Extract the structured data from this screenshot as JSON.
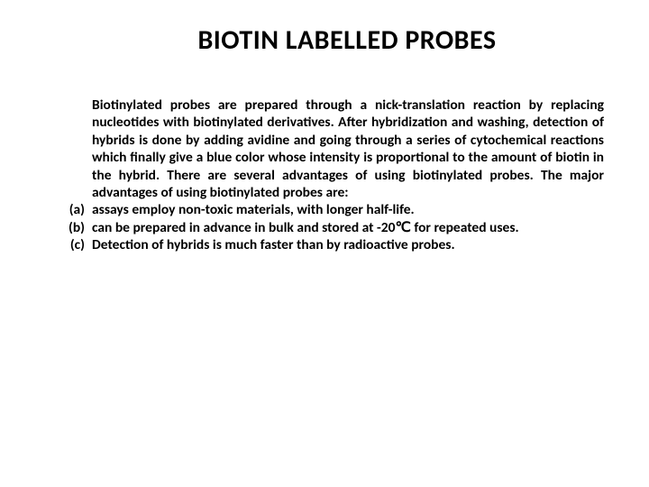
{
  "title": "BIOTIN LABELLED PROBES",
  "intro": "Biotinylated probes are prepared through a nick-translation reaction by replacing nucleotides with biotinylated derivatives. After hybridization and washing, detection of hybrids is done by adding avidine and going through a series of cytochemical reactions which finally give a blue color whose intensity is proportional to the amount of biotin in the hybrid. There are several advantages of using biotinylated probes. The major advantages of using biotinylated probes are:",
  "items": [
    {
      "marker": "(a)",
      "text": "assays employ non-toxic materials, with longer half-life."
    },
    {
      "marker": "(b)",
      "text": "can be prepared in advance in bulk and stored at -20℃ for repeated uses."
    },
    {
      "marker": "(c)",
      "text": "Detection of hybrids is much faster than by radioactive probes."
    }
  ],
  "colors": {
    "background": "#ffffff",
    "text": "#000000"
  },
  "typography": {
    "title_fontsize": 30,
    "body_fontsize": 15.5,
    "font_family": "Calibri",
    "font_weight": 700
  }
}
